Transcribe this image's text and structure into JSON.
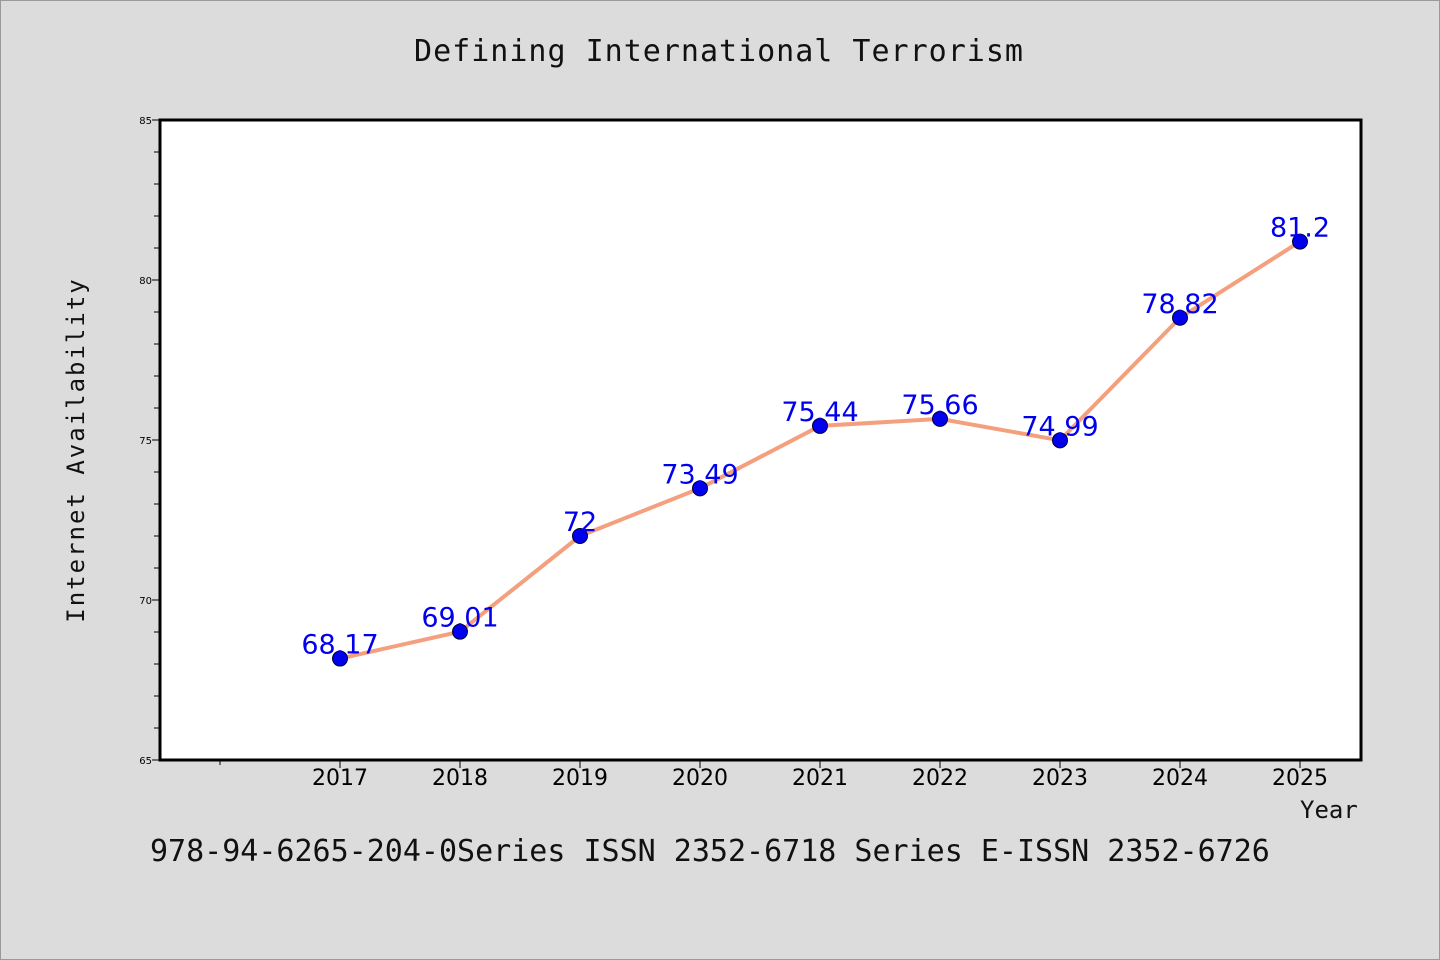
{
  "chart_data": {
    "type": "line",
    "title": "Defining International Terrorism",
    "xlabel": "Year",
    "ylabel": "Internet Availability",
    "categories": [
      "2017",
      "2018",
      "2019",
      "2020",
      "2021",
      "2022",
      "2023",
      "2024",
      "2025"
    ],
    "series": [
      {
        "values": [
          68.17,
          69.01,
          72,
          73.49,
          75.44,
          75.66,
          74.99,
          78.82,
          81.2
        ],
        "labels": [
          "68.17",
          "69.01",
          "72",
          "73.49",
          "75.44",
          "75.66",
          "74.99",
          "78.82",
          "81.2"
        ],
        "line_color": "#f4a07e",
        "marker_color": "#0000ee",
        "label_color": "#0000ee"
      }
    ],
    "ylim": [
      65,
      85
    ],
    "yticks": [
      "65",
      "70",
      "75",
      "80",
      "85"
    ],
    "grid": false,
    "legend": "none"
  },
  "footnote": "978-94-6265-204-0Series ISSN 2352-6718 Series E-ISSN 2352-6726"
}
